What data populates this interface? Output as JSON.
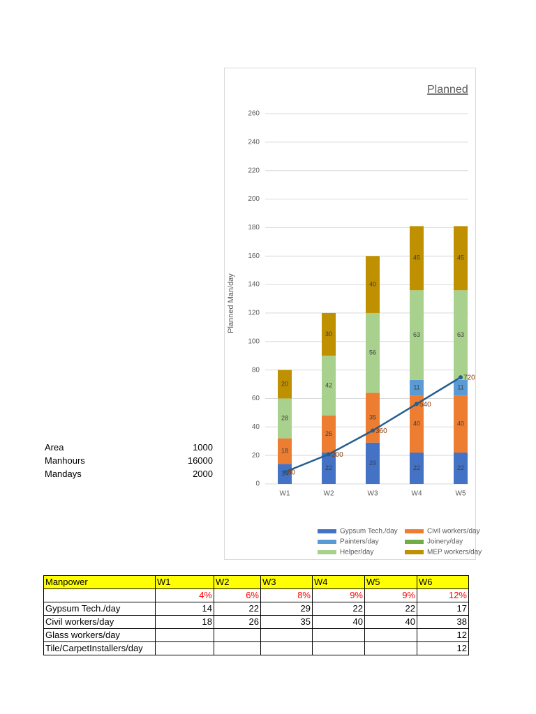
{
  "chart_data": {
    "type": "bar",
    "stacked": true,
    "title": "Planned",
    "y_label": "Planned Man/day",
    "categories": [
      "W1",
      "W2",
      "W3",
      "W4",
      "W5"
    ],
    "ylim": [
      0,
      260
    ],
    "yticks": [
      0,
      20,
      40,
      60,
      80,
      100,
      120,
      140,
      160,
      180,
      200,
      220,
      240,
      260
    ],
    "grid": true,
    "y2lim": [
      0,
      2500
    ],
    "series": [
      {
        "name": "Gypsum Tech./day",
        "color": "#4472c4",
        "values": [
          14,
          22,
          29,
          22,
          22
        ]
      },
      {
        "name": "Civil workers/day",
        "color": "#ed7d31",
        "values": [
          18,
          26,
          35,
          40,
          40
        ]
      },
      {
        "name": "Painters/day",
        "color": "#5b9bd5",
        "values": [
          null,
          null,
          null,
          11,
          11
        ]
      },
      {
        "name": "Joinery/day",
        "color": "#70ad47",
        "values": [
          null,
          null,
          null,
          null,
          null
        ]
      },
      {
        "name": "Helper/day",
        "color": "#a9d18e",
        "values": [
          28,
          42,
          56,
          63,
          63
        ]
      },
      {
        "name": "MEP workers/day",
        "color": "#bf9000",
        "values": [
          20,
          30,
          40,
          45,
          45
        ]
      },
      {
        "type": "line",
        "axis": "y2",
        "color": "#255e91",
        "label_color": "#843c0c",
        "values": [
          80,
          200,
          360,
          540,
          720
        ]
      }
    ]
  },
  "info": [
    {
      "label": "Area",
      "value": 1000
    },
    {
      "label": "Manhours",
      "value": 16000
    },
    {
      "label": "Mandays",
      "value": 2000
    }
  ],
  "table": {
    "header": [
      "Manpower",
      "W1",
      "W2",
      "W3",
      "W4",
      "W5",
      "W6"
    ],
    "rows": [
      [
        null,
        "4%",
        "6%",
        "8%",
        "9%",
        "9%",
        "12%"
      ],
      [
        "Gypsum Tech./day",
        14,
        22,
        29,
        22,
        22,
        17
      ],
      [
        "Civil workers/day",
        18,
        26,
        35,
        40,
        40,
        38
      ],
      [
        "Glass workers/day",
        null,
        null,
        null,
        null,
        null,
        12
      ],
      [
        "Tile/CarpetInstallers/day",
        null,
        null,
        null,
        null,
        null,
        12
      ]
    ]
  }
}
